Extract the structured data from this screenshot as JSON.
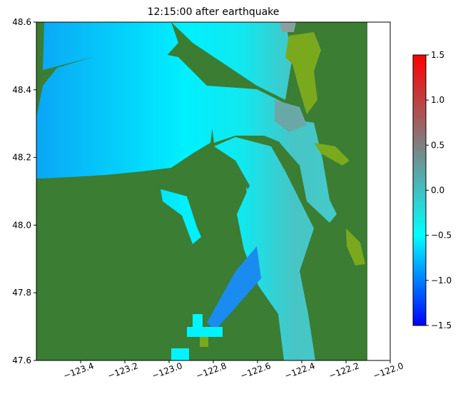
{
  "chart_data": {
    "type": "heatmap",
    "title": "12:15:00 after earthquake",
    "xlim": [
      -123.6,
      -122.0
    ],
    "xticks": [
      {
        "value": -123.4,
        "label": "−123.4"
      },
      {
        "value": -123.2,
        "label": "−123.2"
      },
      {
        "value": -123.0,
        "label": "−123.0"
      },
      {
        "value": -122.8,
        "label": "−122.8"
      },
      {
        "value": -122.6,
        "label": "−122.6"
      },
      {
        "value": -122.4,
        "label": "−122.4"
      },
      {
        "value": -122.2,
        "label": "−122.2"
      },
      {
        "value": -122.0,
        "label": "−122.0"
      }
    ],
    "ylim": [
      47.6,
      48.6
    ],
    "yticks": [
      47.6,
      47.8,
      {
        "value": 48.0,
        "label": "48.0"
      },
      48.2,
      48.4,
      48.6
    ],
    "colorbar": {
      "lim": [
        -1.5,
        1.5
      ],
      "ticks": [
        {
          "value": -1.5,
          "label": "−1.5"
        },
        {
          "value": -1.0,
          "label": "−1.0"
        },
        {
          "value": -0.5,
          "label": "−0.5"
        },
        {
          "value": 0.0,
          "label": "0.0"
        },
        {
          "value": 0.5,
          "label": "0.5"
        },
        {
          "value": 1.0,
          "label": "1.0"
        },
        1.5
      ],
      "colormap": [
        "#0000ff",
        "#00ffff",
        "#808080",
        "#ff0000"
      ]
    },
    "land_color": "#3a7d33"
  }
}
